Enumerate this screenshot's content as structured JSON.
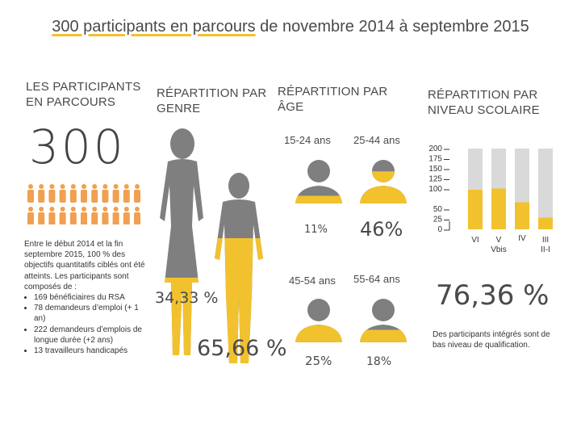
{
  "title": {
    "highlight": "300 participants en parcours",
    "rest": " de novembre 2014 à septembre 2015"
  },
  "participants": {
    "heading_line1": "LES PARTICIPANTS",
    "heading_line2": "EN PARCOURS",
    "total": "300",
    "intro": "Entre le début 2014 et la fin septembre 2015, 100 % des objectifs quantitatifs ciblés ont été atteints. Les participants sont composés de :",
    "items": [
      "169  bénéficiaires du RSA",
      "78 demandeurs d’emploi (+ 1 an)",
      "222 demandeurs d’emplois de longue durée (+2 ans)",
      "13 travailleurs handicapés"
    ]
  },
  "gender": {
    "heading_line1": "RÉPARTITION PAR",
    "heading_line2": "GENRE",
    "female_pct": "34,33 %",
    "male_pct": "65,66 %",
    "female_fill": 0.3433,
    "male_fill": 0.6566
  },
  "age": {
    "heading_line1": "RÉPARTITION PAR",
    "heading_line2": "ÂGE",
    "groups": [
      {
        "label": "15-24 ans",
        "pct": "11%",
        "fill": 0.11
      },
      {
        "label": "25-44 ans",
        "pct": "46%",
        "fill": 0.46
      },
      {
        "label": "45-54 ans",
        "pct": "25%",
        "fill": 0.25
      },
      {
        "label": "55-64 ans",
        "pct": "18%",
        "fill": 0.18
      }
    ]
  },
  "education": {
    "heading_line1": "RÉPARTITION PAR",
    "heading_line2": "NIVEAU SCOLAIRE",
    "big_pct": "76,36 %",
    "note": "Des participants intégrés sont de bas niveau de qualification."
  },
  "colors": {
    "yellow": "#f2c12e",
    "gray": "#7f7f7f",
    "light_gray": "#d9d9d9",
    "orange": "#f0a050"
  },
  "chart_data": {
    "type": "bar",
    "title": "RÉPARTITION PAR NIVEAU SCOLAIRE",
    "categories": [
      "VI",
      "V Vbis",
      "IV",
      "III II-I"
    ],
    "category_lines": [
      [
        "VI"
      ],
      [
        "V",
        "Vbis"
      ],
      [
        "IV"
      ],
      [
        "III",
        "II-I"
      ]
    ],
    "values": [
      98,
      101,
      67,
      29
    ],
    "total_bar": 200,
    "ylim": [
      0,
      200
    ],
    "yticks": [
      0,
      25,
      50,
      100,
      125,
      150,
      175,
      200
    ],
    "series": [
      {
        "name": "",
        "values": [
          98,
          101,
          67,
          29
        ]
      }
    ]
  }
}
